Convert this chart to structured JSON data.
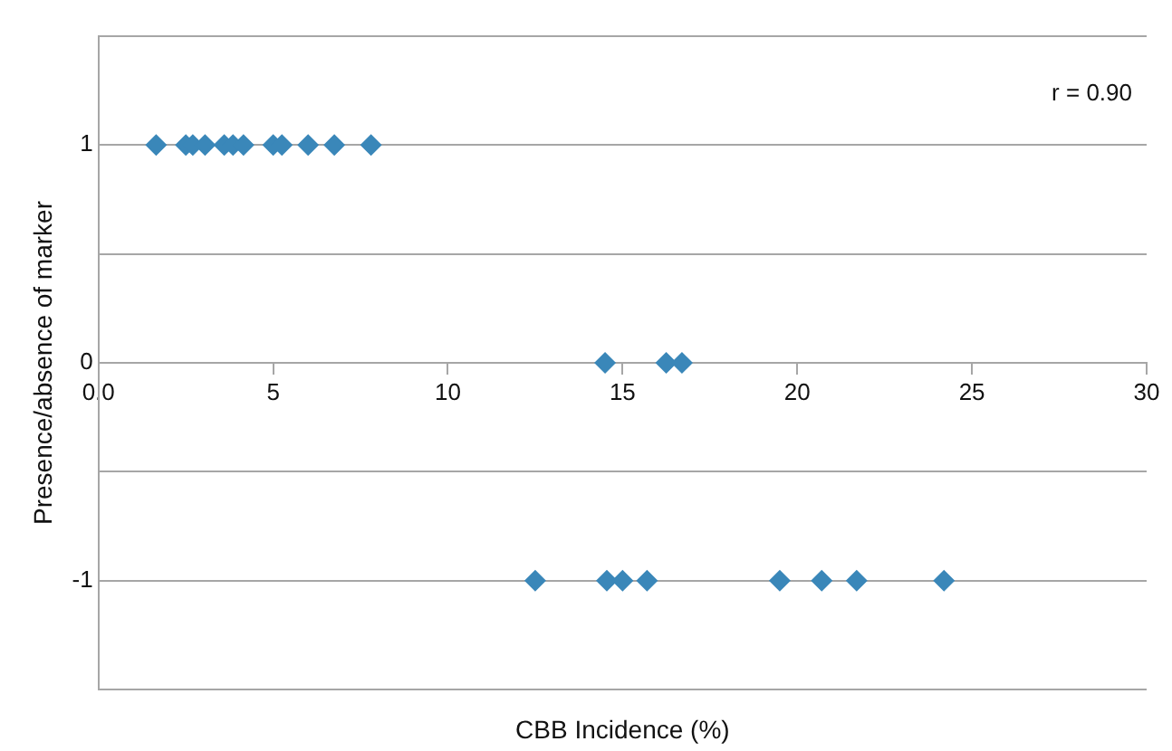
{
  "chart_data": {
    "type": "scatter",
    "xlabel": "CBB Incidence (%)",
    "ylabel": "Presence/absence of marker",
    "annotations": [
      "r = 0.90"
    ],
    "series": [
      {
        "color": "#3a87b9",
        "x": [
          1.65,
          2.5,
          2.7,
          3.05,
          3.6,
          3.85,
          4.15,
          5.0,
          5.25,
          6.0,
          6.75,
          7.8,
          14.5,
          16.25,
          16.7,
          12.5,
          14.55,
          15.0,
          15.7,
          19.5,
          20.7,
          21.7,
          24.2
        ],
        "values": [
          1,
          1,
          1,
          1,
          1,
          1,
          1,
          1,
          1,
          1,
          1,
          1,
          0,
          0,
          0,
          -1,
          -1,
          -1,
          -1,
          -1,
          -1,
          -1,
          -1
        ]
      }
    ],
    "xlim": [
      0,
      30
    ],
    "xticks": [
      {
        "value": 0,
        "label": "0.0"
      },
      5,
      10,
      15,
      20,
      25,
      30
    ],
    "ylim": [
      -1.5,
      1.5
    ],
    "yticks": [
      {
        "value": -1.5,
        "label": null
      },
      -1,
      {
        "value": -0.5,
        "label": null
      },
      0,
      {
        "value": 0.5,
        "label": null
      },
      1,
      {
        "value": 1.5,
        "label": null
      }
    ],
    "grid": "y",
    "marker": "diamond",
    "legend": false
  }
}
